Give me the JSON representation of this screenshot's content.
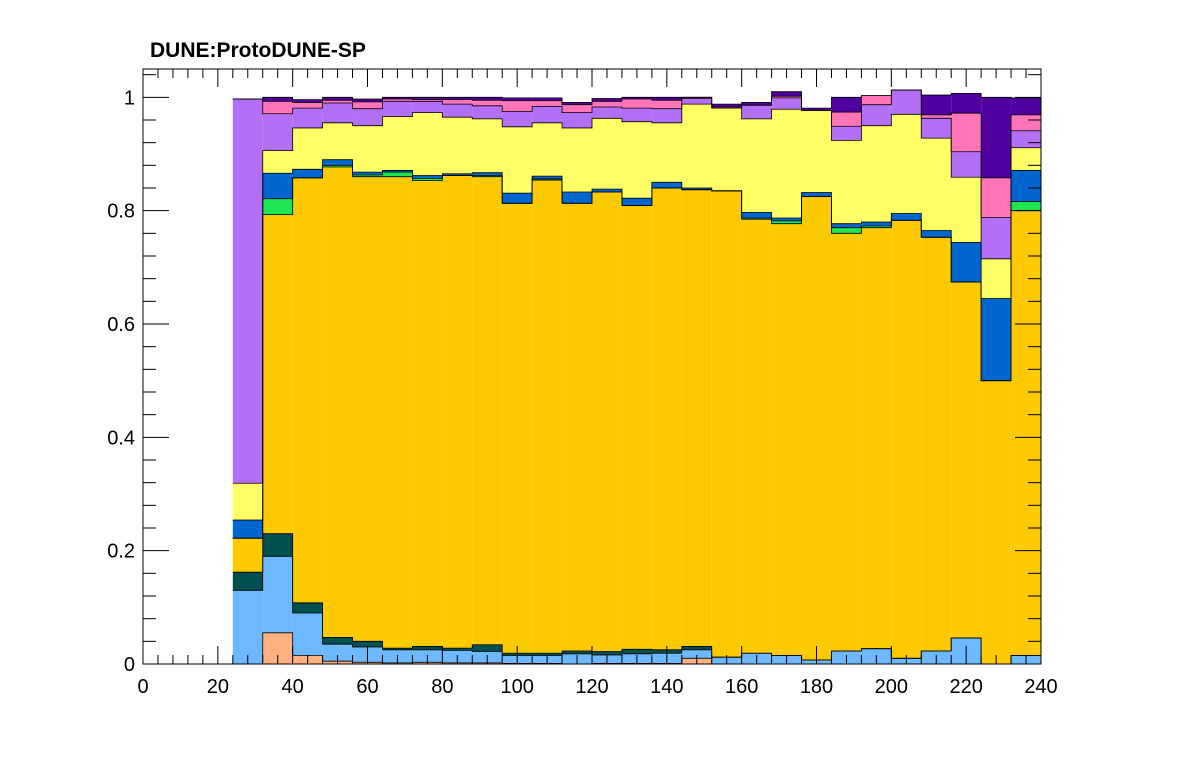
{
  "chart_data": {
    "type": "bar",
    "stacked": true,
    "title": "DUNE:ProtoDUNE-SP",
    "xlabel": "",
    "ylabel": "",
    "xlim": [
      0,
      240
    ],
    "ylim": [
      0,
      1.05
    ],
    "x_ticks": [
      0,
      20,
      40,
      60,
      80,
      100,
      120,
      140,
      160,
      180,
      200,
      220,
      240
    ],
    "y_ticks": [
      0,
      0.2,
      0.4,
      0.6,
      0.8,
      1
    ],
    "y_tick_labels": [
      "0",
      "0.2",
      "0.4",
      "0.6",
      "0.8",
      "1"
    ],
    "bin_width": 8,
    "bin_lows": [
      24,
      32,
      40,
      48,
      56,
      64,
      72,
      80,
      88,
      96,
      104,
      112,
      120,
      128,
      136,
      144,
      152,
      160,
      168,
      176,
      184,
      192,
      200,
      208,
      216,
      224,
      232
    ],
    "grid": false,
    "legend": "none",
    "series": [
      {
        "color": "#ffb27f",
        "values": [
          0.0,
          0.055,
          0.015,
          0.005,
          0.003,
          0.002,
          0.003,
          0.002,
          0.002,
          0.001,
          0.001,
          0.0,
          0.001,
          0.001,
          0.001,
          0.01,
          0.0,
          0.0,
          0.0,
          0.0,
          0.0,
          0.0,
          0.0,
          0.0,
          0.0,
          0.0,
          0.0
        ]
      },
      {
        "color": "#6eb8ff",
        "values": [
          0.13,
          0.135,
          0.075,
          0.03,
          0.027,
          0.023,
          0.022,
          0.022,
          0.02,
          0.014,
          0.014,
          0.018,
          0.015,
          0.017,
          0.018,
          0.015,
          0.012,
          0.019,
          0.015,
          0.007,
          0.023,
          0.027,
          0.01,
          0.023,
          0.046,
          0.0,
          0.015
        ]
      },
      {
        "color": "#00504f",
        "values": [
          0.032,
          0.04,
          0.018,
          0.012,
          0.01,
          0.003,
          0.006,
          0.004,
          0.012,
          0.004,
          0.004,
          0.005,
          0.006,
          0.008,
          0.006,
          0.006,
          0.0,
          0.0,
          0.0,
          0.0,
          0.0,
          0.0,
          0.0,
          0.0,
          0.0,
          0.0,
          0.0
        ]
      },
      {
        "color": "#fdc900",
        "values": [
          0.06,
          0.563,
          0.75,
          0.83,
          0.82,
          0.832,
          0.822,
          0.834,
          0.826,
          0.794,
          0.835,
          0.79,
          0.811,
          0.783,
          0.815,
          0.806,
          0.823,
          0.766,
          0.762,
          0.818,
          0.737,
          0.743,
          0.773,
          0.73,
          0.628,
          0.5,
          0.785
        ]
      },
      {
        "color": "#1ee650",
        "values": [
          0.0,
          0.028,
          0.0,
          0.003,
          0.003,
          0.008,
          0.004,
          0.0,
          0.002,
          0.0,
          0.002,
          0.0,
          0.0,
          0.0,
          0.0,
          0.0,
          0.0,
          0.002,
          0.005,
          0.0,
          0.01,
          0.003,
          0.0,
          0.0,
          0.0,
          0.0,
          0.016
        ]
      },
      {
        "color": "#0067d1",
        "values": [
          0.032,
          0.045,
          0.015,
          0.01,
          0.005,
          0.003,
          0.005,
          0.003,
          0.005,
          0.018,
          0.005,
          0.02,
          0.005,
          0.013,
          0.01,
          0.003,
          0.0,
          0.01,
          0.005,
          0.007,
          0.007,
          0.007,
          0.012,
          0.012,
          0.07,
          0.145,
          0.055
        ]
      },
      {
        "color": "#ffff66",
        "values": [
          0.065,
          0.04,
          0.073,
          0.065,
          0.082,
          0.095,
          0.111,
          0.1,
          0.095,
          0.117,
          0.094,
          0.113,
          0.125,
          0.135,
          0.105,
          0.148,
          0.146,
          0.165,
          0.192,
          0.145,
          0.147,
          0.17,
          0.175,
          0.163,
          0.115,
          0.07,
          0.04
        ]
      },
      {
        "color": "#b46ff7",
        "values": [
          0.678,
          0.065,
          0.035,
          0.035,
          0.03,
          0.027,
          0.02,
          0.023,
          0.023,
          0.027,
          0.029,
          0.027,
          0.02,
          0.024,
          0.025,
          0.01,
          0.0,
          0.024,
          0.02,
          0.0,
          0.025,
          0.037,
          0.043,
          0.035,
          0.045,
          0.073,
          0.03
        ]
      },
      {
        "color": "#ff75b8",
        "values": [
          0.0,
          0.022,
          0.01,
          0.005,
          0.012,
          0.004,
          0.003,
          0.008,
          0.01,
          0.019,
          0.01,
          0.014,
          0.01,
          0.016,
          0.015,
          0.002,
          0.002,
          0.0,
          0.003,
          0.0,
          0.025,
          0.016,
          0.0,
          0.006,
          0.068,
          0.07,
          0.028
        ]
      },
      {
        "color": "#50009f",
        "values": [
          0.0,
          0.007,
          0.005,
          0.005,
          0.005,
          0.003,
          0.004,
          0.004,
          0.005,
          0.005,
          0.005,
          0.004,
          0.005,
          0.003,
          0.005,
          0.0,
          0.005,
          0.005,
          0.008,
          0.004,
          0.026,
          0.0,
          0.0,
          0.035,
          0.035,
          0.142,
          0.03
        ]
      }
    ]
  }
}
